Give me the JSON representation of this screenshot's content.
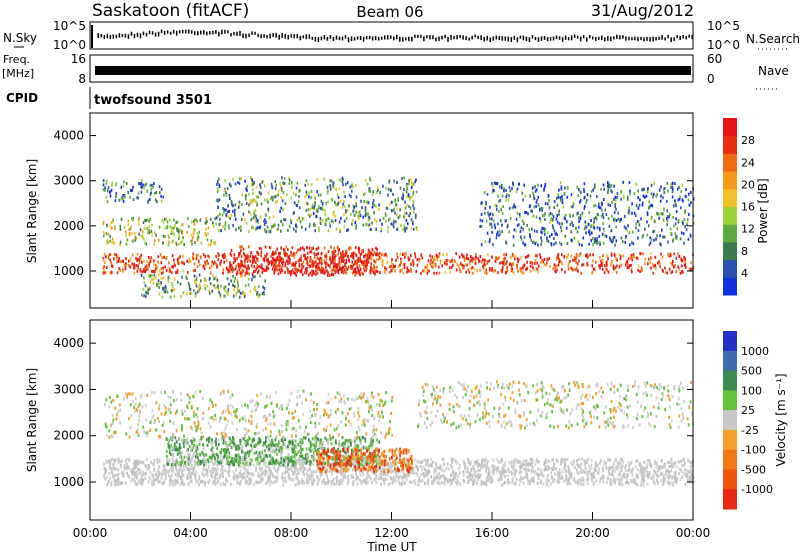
{
  "header": {
    "station": "Saskatoon (fitACF)",
    "beam": "Beam 06",
    "date": "31/Aug/2012"
  },
  "top_panels": {
    "nsky_label": "N.Sky",
    "nsky_ticks": [
      "10^5",
      "10^0"
    ],
    "nsearch_label": "N.Search",
    "freq_label_1": "Freq.",
    "freq_label_2": "[MHz]",
    "freq_ticks": [
      "16",
      "8"
    ],
    "nave_ticks": [
      "60",
      "0"
    ],
    "nave_label": "Nave",
    "cpid_label": "CPID",
    "cpid_value": "twofsound 3501"
  },
  "chart_data": [
    {
      "type": "heatmap",
      "name": "power",
      "xlabel": "",
      "ylabel": "Slant Range [km]",
      "x_range": [
        "00:00",
        "24:00"
      ],
      "ylim": [
        180,
        4500
      ],
      "yticks": [
        1000,
        2000,
        3000,
        4000
      ],
      "colorbar": {
        "label": "Power [dB]",
        "ticks": [
          "4",
          "8",
          "12",
          "16",
          "20",
          "24",
          "28"
        ],
        "colors": [
          "#1030e0",
          "#2c4fb0",
          "#3d7a50",
          "#5faa3c",
          "#9bd23a",
          "#f2c02a",
          "#f59a1c",
          "#f06a12",
          "#e83010",
          "#e81414"
        ]
      },
      "bands": [
        {
          "t0": 0.5,
          "t1": 24,
          "r_mid": 1200,
          "r_half": 220,
          "level": 0.82,
          "note": "main band"
        },
        {
          "t0": 5.5,
          "t1": 11.5,
          "r_mid": 1250,
          "r_half": 320,
          "level": 0.95
        },
        {
          "t0": 0.5,
          "t1": 5.0,
          "r_mid": 1900,
          "r_half": 300,
          "level": 0.45
        },
        {
          "t0": 0.5,
          "t1": 3.0,
          "r_mid": 2800,
          "r_half": 250,
          "level": 0.2
        },
        {
          "t0": 5.0,
          "t1": 13.0,
          "r_mid": 2500,
          "r_half": 600,
          "level": 0.3
        },
        {
          "t0": 15.5,
          "t1": 24,
          "r_mid": 2300,
          "r_half": 700,
          "level": 0.18
        },
        {
          "t0": 2.0,
          "t1": 7.0,
          "r_mid": 700,
          "r_half": 250,
          "level": 0.35
        }
      ]
    },
    {
      "type": "heatmap",
      "name": "velocity",
      "xlabel": "Time UT",
      "ylabel": "Slant Range [km]",
      "x_range": [
        "00:00",
        "24:00"
      ],
      "ylim": [
        180,
        4500
      ],
      "yticks": [
        1000,
        2000,
        3000,
        4000
      ],
      "xticks": [
        "00:00",
        "04:00",
        "08:00",
        "12:00",
        "16:00",
        "20:00",
        "00:00"
      ],
      "colorbar": {
        "label": "Velocity [m s⁻¹]",
        "ticks": [
          "1000",
          "500",
          "100",
          "25",
          "-25",
          "-100",
          "-500",
          "-1000"
        ],
        "colors": [
          "#2030c8",
          "#3f6ab0",
          "#3d8a52",
          "#62c23a",
          "#c8c8c8",
          "#f2a02a",
          "#f07a18",
          "#f05210",
          "#e82812"
        ]
      },
      "bands": [
        {
          "t0": 0.5,
          "t1": 24,
          "r_mid": 1250,
          "r_half": 280,
          "class": "ground"
        },
        {
          "t0": 3.0,
          "t1": 11.5,
          "r_mid": 1700,
          "r_half": 300,
          "class": "green"
        },
        {
          "t0": 9.0,
          "t1": 12.8,
          "r_mid": 1500,
          "r_half": 250,
          "class": "orange"
        },
        {
          "t0": 0.5,
          "t1": 12.0,
          "r_mid": 2500,
          "r_half": 500,
          "class": "sparse-gray"
        },
        {
          "t0": 13.0,
          "t1": 24,
          "r_mid": 2700,
          "r_half": 500,
          "class": "sparse-gray"
        }
      ]
    }
  ]
}
